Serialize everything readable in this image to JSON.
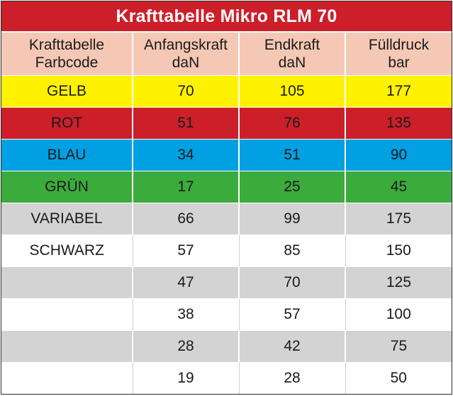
{
  "title": "Krafttabelle Mikro RLM 70",
  "headers": [
    {
      "line1": "Krafttabelle",
      "line2": "Farbcode"
    },
    {
      "line1": "Anfangskraft",
      "line2": "daN"
    },
    {
      "line1": "Endkraft",
      "line2": "daN"
    },
    {
      "line1": "Fülldruck",
      "line2": "bar"
    }
  ],
  "rows": [
    {
      "farbcode": "GELB",
      "anfangskraft": "70",
      "endkraft": "105",
      "fuelldruck": "177",
      "row_color": "#fff200"
    },
    {
      "farbcode": "ROT",
      "anfangskraft": "51",
      "endkraft": "76",
      "fuelldruck": "135",
      "row_color": "#cc1f2a"
    },
    {
      "farbcode": "BLAU",
      "anfangskraft": "34",
      "endkraft": "51",
      "fuelldruck": "90",
      "row_color": "#00a0e3"
    },
    {
      "farbcode": "GRÜN",
      "anfangskraft": "17",
      "endkraft": "25",
      "fuelldruck": "45",
      "row_color": "#3bab3c"
    },
    {
      "farbcode": "VARIABEL",
      "anfangskraft": "66",
      "endkraft": "99",
      "fuelldruck": "175",
      "row_color": "#d3d3d3"
    },
    {
      "farbcode": "SCHWARZ",
      "anfangskraft": "57",
      "endkraft": "85",
      "fuelldruck": "150",
      "row_color": "#ffffff"
    },
    {
      "farbcode": "",
      "anfangskraft": "47",
      "endkraft": "70",
      "fuelldruck": "125",
      "row_color": "#d3d3d3"
    },
    {
      "farbcode": "",
      "anfangskraft": "38",
      "endkraft": "57",
      "fuelldruck": "100",
      "row_color": "#ffffff"
    },
    {
      "farbcode": "",
      "anfangskraft": "28",
      "endkraft": "42",
      "fuelldruck": "75",
      "row_color": "#d3d3d3"
    },
    {
      "farbcode": "",
      "anfangskraft": "19",
      "endkraft": "28",
      "fuelldruck": "50",
      "row_color": "#ffffff"
    }
  ],
  "colors": {
    "title_background": "#cc1f2a",
    "header_background": "#f5c8b5"
  }
}
